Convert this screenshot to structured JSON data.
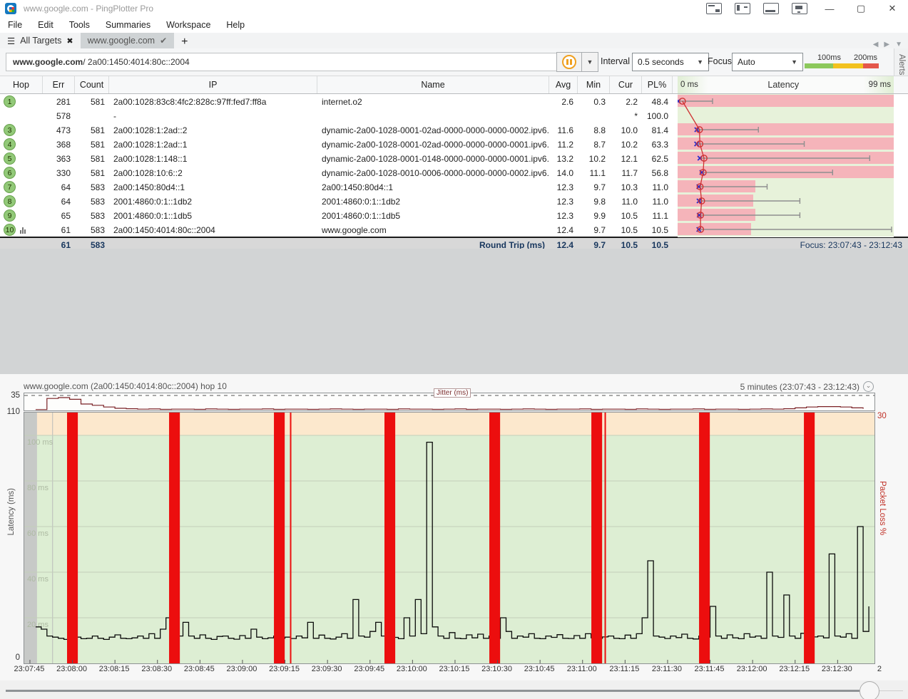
{
  "window": {
    "title": "www.google.com - PingPlotter Pro",
    "minimize": "—",
    "maximize": "▢",
    "close": "✕"
  },
  "menu": {
    "items": [
      "File",
      "Edit",
      "Tools",
      "Summaries",
      "Workspace",
      "Help"
    ]
  },
  "tabs": {
    "all_targets_label": "All Targets",
    "all_targets_close": "✖",
    "active_label": "www.google.com",
    "active_check": "✔",
    "new_tab": "+"
  },
  "toolbar": {
    "target_host": "www.google.com",
    "target_suffix": " / 2a00:1450:4014:80c::2004",
    "interval_label": "Interval",
    "interval_value": "0.5 seconds",
    "focus_label": "Focus",
    "focus_value": "Auto",
    "legend": {
      "label_100": "100ms",
      "label_200": "200ms",
      "colors": {
        "green": "#8cc85c",
        "yellow": "#f2c21f",
        "red": "#e4574b"
      }
    },
    "alerts_label": "Alerts"
  },
  "table": {
    "headers": {
      "hop": "Hop",
      "err": "Err",
      "count": "Count",
      "ip": "IP",
      "name": "Name",
      "avg": "Avg",
      "min": "Min",
      "cur": "Cur",
      "pl": "PL%"
    },
    "latency_header": {
      "left": "0 ms",
      "center": "Latency",
      "right": "99 ms"
    },
    "rows": [
      {
        "hop": "1",
        "err": "281",
        "count": "581",
        "ip": "2a00:1028:83c8:4fc2:828c:97ff:fed7:ff8a",
        "name": "internet.o2",
        "avg": "2.6",
        "min": "0.3",
        "cur": "2.2",
        "pl": "48.4"
      },
      {
        "hop": "",
        "err": "578",
        "count": "",
        "ip": "-",
        "name": "",
        "avg": "",
        "min": "",
        "cur": "*",
        "pl": "100.0"
      },
      {
        "hop": "3",
        "err": "473",
        "count": "581",
        "ip": "2a00:1028:1:2ad::2",
        "name": "dynamic-2a00-1028-0001-02ad-0000-0000-0000-0002.ipv6.",
        "avg": "11.6",
        "min": "8.8",
        "cur": "10.0",
        "pl": "81.4"
      },
      {
        "hop": "4",
        "err": "368",
        "count": "581",
        "ip": "2a00:1028:1:2ad::1",
        "name": "dynamic-2a00-1028-0001-02ad-0000-0000-0000-0001.ipv6.",
        "avg": "11.2",
        "min": "8.7",
        "cur": "10.2",
        "pl": "63.3"
      },
      {
        "hop": "5",
        "err": "363",
        "count": "581",
        "ip": "2a00:1028:1:148::1",
        "name": "dynamic-2a00-1028-0001-0148-0000-0000-0000-0001.ipv6.",
        "avg": "13.2",
        "min": "10.2",
        "cur": "12.1",
        "pl": "62.5"
      },
      {
        "hop": "6",
        "err": "330",
        "count": "581",
        "ip": "2a00:1028:10:6::2",
        "name": "dynamic-2a00-1028-0010-0006-0000-0000-0000-0002.ipv6.",
        "avg": "14.0",
        "min": "11.1",
        "cur": "11.7",
        "pl": "56.8"
      },
      {
        "hop": "7",
        "err": "64",
        "count": "583",
        "ip": "2a00:1450:80d4::1",
        "name": "2a00:1450:80d4::1",
        "avg": "12.3",
        "min": "9.7",
        "cur": "10.3",
        "pl": "11.0"
      },
      {
        "hop": "8",
        "err": "64",
        "count": "583",
        "ip": "2001:4860:0:1::1db2",
        "name": "2001:4860:0:1::1db2",
        "avg": "12.3",
        "min": "9.8",
        "cur": "11.0",
        "pl": "11.0"
      },
      {
        "hop": "9",
        "err": "65",
        "count": "583",
        "ip": "2001:4860:0:1::1db5",
        "name": "2001:4860:0:1::1db5",
        "avg": "12.3",
        "min": "9.9",
        "cur": "10.5",
        "pl": "11.1"
      },
      {
        "hop": "10",
        "err": "61",
        "count": "583",
        "ip": "2a00:1450:4014:80c::2004",
        "name": "www.google.com",
        "avg": "12.4",
        "min": "9.7",
        "cur": "10.5",
        "pl": "10.5"
      }
    ],
    "summary": {
      "err": "61",
      "count": "583",
      "label": "Round Trip (ms)",
      "avg": "12.4",
      "min": "9.7",
      "cur": "10.5",
      "pl": "10.5",
      "focus": "Focus: 23:07:43 - 23:12:43"
    }
  },
  "timeline": {
    "title": "www.google.com (2a00:1450:4014:80c::2004) hop 10",
    "range_label": "5 minutes (23:07:43 - 23:12:43)",
    "range_chevron": "⌄",
    "jitter_label": "Jitter (ms)",
    "jitter_max": "35",
    "y_top": "110",
    "y_bottom": "0",
    "y_axis_label": "Latency (ms)",
    "right_top": "30",
    "right_axis_label": "Packet Loss %"
  },
  "chart_data": {
    "hops_overview": {
      "type": "range-markers",
      "x_range_ms": [
        0,
        99
      ],
      "note": "per table row: min/cur markers, min-max whisker, packet-loss red band fraction",
      "rows": [
        {
          "row": 0,
          "min": 0.3,
          "cur": 2.2,
          "max": 16,
          "loss_frac": 1
        },
        {
          "row": 1,
          "loss_frac": 0
        },
        {
          "row": 2,
          "min": 8.8,
          "cur": 10.0,
          "max": 37,
          "loss_frac": 1
        },
        {
          "row": 3,
          "min": 8.7,
          "cur": 10.2,
          "max": 58,
          "loss_frac": 1
        },
        {
          "row": 4,
          "min": 10.2,
          "cur": 12.1,
          "max": 88,
          "loss_frac": 1
        },
        {
          "row": 5,
          "min": 11.1,
          "cur": 11.7,
          "max": 71,
          "loss_frac": 1
        },
        {
          "row": 6,
          "min": 9.7,
          "cur": 10.3,
          "max": 41,
          "loss_frac": 0.36
        },
        {
          "row": 7,
          "min": 9.8,
          "cur": 11.0,
          "max": 56,
          "loss_frac": 0.35
        },
        {
          "row": 8,
          "min": 9.9,
          "cur": 10.5,
          "max": 56,
          "loss_frac": 0.36
        },
        {
          "row": 9,
          "min": 9.7,
          "cur": 10.5,
          "max": 98,
          "loss_frac": 0.34
        }
      ]
    },
    "timeline": {
      "type": "line",
      "title": "Round trip latency to hop 10 over 5 minutes",
      "x_start_time": "23:07:43",
      "duration_s": 300,
      "ylim": [
        0,
        110
      ],
      "warn_band_ms": [
        100,
        110
      ],
      "grid_ms": [
        100,
        80,
        60,
        40,
        20
      ],
      "grid_label_suffix": " ms",
      "no_data_band_s": [
        0,
        4.5
      ],
      "focus_line_s": 10,
      "loss_bars_s": [
        17,
        53,
        90,
        129,
        166,
        202,
        240,
        277
      ],
      "loss_bar_width_s": 3.8,
      "thin_loss_lines_s": [
        94,
        205
      ],
      "x_tick_start_s": 2,
      "x_tick_step_s": 15,
      "x_tick_labels": [
        "23:07:45",
        "23:08:00",
        "23:08:15",
        "23:08:30",
        "23:08:45",
        "23:09:00",
        "23:09:15",
        "23:09:30",
        "23:09:45",
        "23:10:00",
        "23:10:15",
        "23:10:30",
        "23:10:45",
        "23:11:00",
        "23:11:15",
        "23:11:30",
        "23:11:45",
        "23:12:00",
        "23:12:15",
        "23:12:30",
        "2"
      ],
      "latency_ms": {
        "t0": 4,
        "dt": 2,
        "values": [
          16,
          15,
          12,
          11.5,
          11,
          10.5,
          11,
          11.5,
          10.8,
          11,
          12,
          11,
          10.5,
          11.5,
          12.5,
          11,
          10.8,
          11.2,
          12,
          11,
          13,
          11,
          15,
          20,
          30,
          12,
          18,
          12,
          11,
          12.5,
          11,
          10.5,
          11.8,
          12,
          11,
          10.6,
          12.2,
          11,
          15,
          11.5,
          10.8,
          11.2,
          12,
          11,
          11.5,
          10.9,
          12,
          11.2,
          18,
          11,
          12.4,
          11,
          10.7,
          11.5,
          13,
          11,
          28,
          12,
          11.5,
          14,
          18,
          12,
          11,
          11.4,
          10.8,
          20,
          12,
          28,
          13,
          97,
          16,
          12,
          11,
          13.5,
          11,
          10.8,
          12.5,
          11.2,
          12.8,
          11,
          12,
          11,
          20,
          14,
          11,
          12,
          11.5,
          13,
          11,
          10.8,
          12,
          11.4,
          12.6,
          11,
          10.9,
          12.2,
          11,
          13,
          11.2,
          11,
          11.6,
          12,
          11,
          10.8,
          12.4,
          11,
          13,
          20,
          45,
          12,
          11.5,
          10.9,
          12,
          11.3,
          12.8,
          11,
          10.7,
          12,
          11.5,
          25,
          12,
          11,
          12.5,
          11.2,
          10.8,
          13,
          11.5,
          12,
          11,
          40,
          12,
          11.4,
          30,
          12,
          11,
          13.2,
          11,
          11.6,
          12,
          11.2,
          48,
          12,
          11.5,
          13,
          11,
          60,
          14,
          25
        ]
      },
      "jitter_ms": {
        "t0": 4,
        "dt": 4,
        "ylim": [
          0,
          40
        ],
        "dashed_ms": 35,
        "values": [
          2,
          28,
          30,
          26,
          15,
          12,
          8,
          5,
          4,
          3,
          3.5,
          2.5,
          3,
          3,
          2.5,
          3.5,
          3,
          2.5,
          3,
          3,
          3.5,
          2.5,
          3,
          3,
          2.5,
          3,
          3.5,
          3,
          2.5,
          3,
          3,
          2.5,
          3.5,
          3,
          3,
          2.5,
          3,
          3.5,
          2.5,
          3,
          3,
          2.5,
          3,
          3.5,
          3,
          2.5,
          3,
          3,
          3.5,
          2.5,
          3,
          3,
          2.5,
          3.5,
          3,
          2.5,
          3,
          3,
          3.5,
          2.5,
          3,
          3,
          2.5,
          3,
          3.5,
          3,
          4,
          6,
          8,
          9,
          9,
          8,
          6,
          4
        ]
      }
    }
  }
}
